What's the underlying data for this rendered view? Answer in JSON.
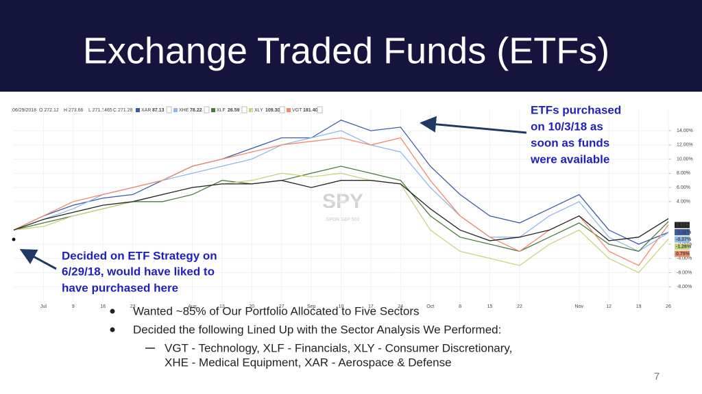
{
  "title": "Exchange Traded Funds (ETFs)",
  "chart_data": {
    "type": "line",
    "date": "06/29/2018",
    "ohlc": [
      "O 272.12",
      "H 273.66",
      "L 271.1465",
      "C 271.28"
    ],
    "main": {
      "name": "SPY",
      "full_name": "SPDR S&P 500",
      "color": "#222222",
      "values": [
        0,
        1.5,
        2.5,
        3.5,
        4,
        5,
        6,
        6.5,
        6.5,
        7,
        6,
        7,
        7,
        6.5,
        3,
        0,
        -1.5,
        -1,
        0,
        2,
        -1.5,
        -1,
        1.61
      ],
      "end_label": "1.61%"
    },
    "categories": [
      null,
      "Jul",
      "9",
      "16",
      "23",
      null,
      "Aug",
      "13",
      "20",
      "27",
      "Sep",
      "10",
      "17",
      "24",
      "Oct",
      "8",
      "15",
      "22",
      null,
      "Nov",
      "12",
      "19",
      "26"
    ],
    "series": [
      {
        "name": "XAR",
        "quote": "87.13",
        "color": "#3b5ba8",
        "values": [
          0,
          2,
          3.5,
          4.5,
          5,
          7,
          9,
          10,
          11.5,
          13,
          13,
          15.5,
          14,
          14.5,
          9,
          5,
          2,
          1,
          3,
          5,
          0,
          -2,
          -0.32
        ],
        "end_label": "-0.32%"
      },
      {
        "name": "XHE",
        "quote": "78.22",
        "color": "#8fb8e8",
        "values": [
          0,
          1.5,
          3,
          5,
          6,
          7,
          8,
          9,
          10,
          12,
          13,
          14,
          12,
          11,
          6,
          2,
          -1,
          -1,
          2,
          4,
          -1,
          -3,
          -0.37
        ],
        "end_label": "-0.37%"
      },
      {
        "name": "XLF",
        "quote": "26.59",
        "color": "#4a7a3a",
        "values": [
          0,
          1,
          2,
          3,
          4,
          4,
          5,
          7,
          6.5,
          7,
          8,
          9,
          8,
          7,
          2,
          -1,
          -2,
          -3,
          -1,
          1,
          -2,
          -3,
          1.2
        ]
      },
      {
        "name": "XLY",
        "quote": "109.30",
        "color": "#c8d47a",
        "values": [
          0,
          0.5,
          2,
          3,
          4,
          5,
          6,
          6.5,
          7,
          8,
          7.5,
          8,
          7,
          6.5,
          0,
          -3,
          -4,
          -5,
          -2,
          0,
          -4,
          -6,
          -1.26
        ],
        "end_label": "-1.26%"
      },
      {
        "name": "VGT",
        "quote": "181.40",
        "color": "#f08a6a",
        "values": [
          0,
          2,
          4,
          5,
          6,
          7,
          9,
          10,
          11,
          12,
          12.5,
          13,
          12,
          13,
          7,
          2,
          -1,
          -3,
          0,
          2,
          -3,
          -5,
          0.75
        ],
        "end_label": "0.75%"
      }
    ],
    "ylim": [
      -10,
      17
    ],
    "yticks": [
      {
        "value": 14,
        "label": "14.00%"
      },
      {
        "value": 12,
        "label": "12.00%"
      },
      {
        "value": 10,
        "label": "10.00%"
      },
      {
        "value": 8,
        "label": "8.00%"
      },
      {
        "value": 6,
        "label": "6.00%"
      },
      {
        "value": 4,
        "label": "4.00%"
      },
      {
        "value": -2,
        "label": "-2.00%"
      },
      {
        "value": -4,
        "label": "-4.00%"
      },
      {
        "value": -6,
        "label": "-6.00%"
      },
      {
        "value": -8,
        "label": "-8.00%"
      }
    ],
    "grid": true
  },
  "annotations": [
    {
      "lines": [
        "ETFs purchased",
        "on 10/3/18 as",
        "soon as funds",
        "were available"
      ]
    },
    {
      "lines": [
        "Decided on ETF Strategy on",
        "6/29/18, would have liked to",
        "have purchased here"
      ]
    }
  ],
  "bullets": [
    "Wanted ~85% of Our Portfolio Allocated to Five Sectors",
    "Decided the following Lined Up with the Sector Analysis We Performed:"
  ],
  "sub_bullet": [
    "VGT - Technology, XLF - Financials, XLY - Consumer Discretionary,",
    "XHE - Medical Equipment, XAR - Aerospace & Defense"
  ],
  "page_number": "7"
}
